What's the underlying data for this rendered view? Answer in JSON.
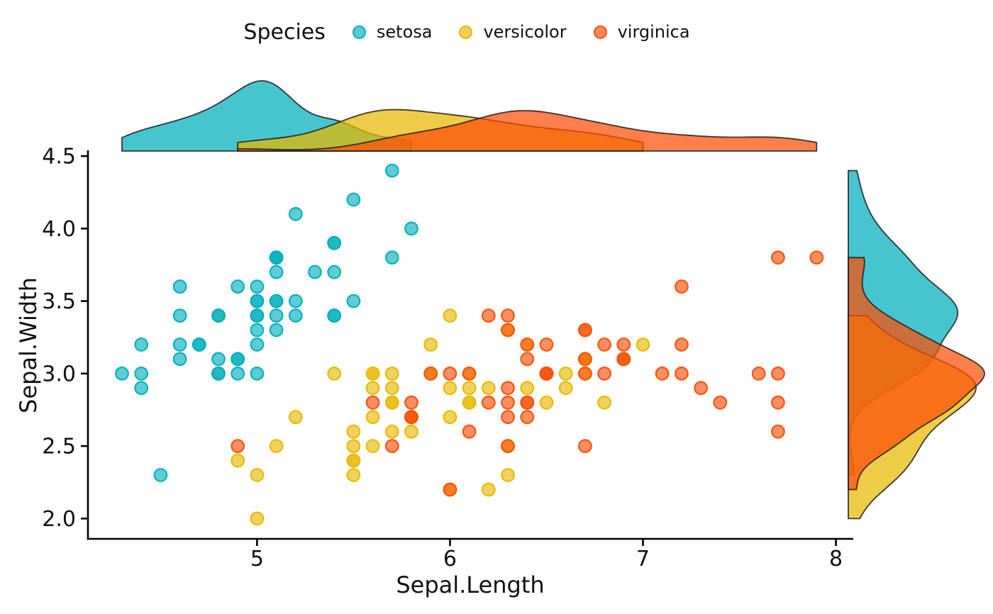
{
  "legend": {
    "title": "Species",
    "items": [
      {
        "label": "setosa",
        "color": "#00AFBB"
      },
      {
        "label": "versicolor",
        "color": "#E7B800"
      },
      {
        "label": "virginica",
        "color": "#FC4E07"
      }
    ]
  },
  "chart_data": {
    "type": "scatter",
    "title": "",
    "xlabel": "Sepal.Length",
    "ylabel": "Sepal.Width",
    "legend_title": "Species",
    "legend_position": "top",
    "xlim": [
      4.12,
      8.09
    ],
    "ylim": [
      1.86,
      4.53
    ],
    "grid": false,
    "marginals": {
      "top": "density of Sepal.Length by Species",
      "right": "density of Sepal.Width by Species"
    },
    "x_ticks": [
      {
        "value": 5,
        "label": "5"
      },
      {
        "value": 6,
        "label": "6"
      },
      {
        "value": 7,
        "label": "7"
      },
      {
        "value": 8,
        "label": "8"
      }
    ],
    "y_ticks": [
      {
        "value": 4.5,
        "label": "4.5"
      },
      {
        "value": 4.0,
        "label": "4.0"
      },
      {
        "value": 3.5,
        "label": "3.5"
      },
      {
        "value": 3.0,
        "label": "3.0"
      },
      {
        "value": 2.5,
        "label": "2.5"
      },
      {
        "value": 2.0,
        "label": "2.0"
      }
    ],
    "series": [
      {
        "name": "setosa",
        "color": "#00AFBB",
        "points": [
          [
            5.1,
            3.5
          ],
          [
            4.9,
            3.0
          ],
          [
            4.7,
            3.2
          ],
          [
            4.6,
            3.1
          ],
          [
            5.0,
            3.6
          ],
          [
            5.4,
            3.9
          ],
          [
            4.6,
            3.4
          ],
          [
            5.0,
            3.4
          ],
          [
            4.4,
            2.9
          ],
          [
            4.9,
            3.1
          ],
          [
            5.4,
            3.7
          ],
          [
            4.8,
            3.4
          ],
          [
            4.8,
            3.0
          ],
          [
            4.3,
            3.0
          ],
          [
            5.8,
            4.0
          ],
          [
            5.7,
            4.4
          ],
          [
            5.4,
            3.9
          ],
          [
            5.1,
            3.5
          ],
          [
            5.7,
            3.8
          ],
          [
            5.1,
            3.8
          ],
          [
            5.4,
            3.4
          ],
          [
            5.1,
            3.7
          ],
          [
            4.6,
            3.6
          ],
          [
            5.1,
            3.3
          ],
          [
            4.8,
            3.4
          ],
          [
            5.0,
            3.0
          ],
          [
            5.0,
            3.4
          ],
          [
            5.2,
            3.5
          ],
          [
            5.2,
            3.4
          ],
          [
            4.7,
            3.2
          ],
          [
            4.8,
            3.1
          ],
          [
            5.4,
            3.4
          ],
          [
            5.2,
            4.1
          ],
          [
            5.5,
            4.2
          ],
          [
            4.9,
            3.1
          ],
          [
            5.0,
            3.2
          ],
          [
            5.5,
            3.5
          ],
          [
            4.9,
            3.6
          ],
          [
            4.4,
            3.0
          ],
          [
            5.1,
            3.4
          ],
          [
            5.0,
            3.5
          ],
          [
            4.5,
            2.3
          ],
          [
            4.4,
            3.2
          ],
          [
            5.0,
            3.5
          ],
          [
            5.1,
            3.8
          ],
          [
            4.8,
            3.0
          ],
          [
            5.1,
            3.8
          ],
          [
            4.6,
            3.2
          ],
          [
            5.3,
            3.7
          ],
          [
            5.0,
            3.3
          ]
        ]
      },
      {
        "name": "versicolor",
        "color": "#E7B800",
        "points": [
          [
            7.0,
            3.2
          ],
          [
            6.4,
            3.2
          ],
          [
            6.9,
            3.1
          ],
          [
            5.5,
            2.3
          ],
          [
            6.5,
            2.8
          ],
          [
            5.7,
            2.8
          ],
          [
            6.3,
            3.3
          ],
          [
            4.9,
            2.4
          ],
          [
            6.6,
            2.9
          ],
          [
            5.2,
            2.7
          ],
          [
            5.0,
            2.0
          ],
          [
            5.9,
            3.0
          ],
          [
            6.0,
            2.2
          ],
          [
            6.1,
            2.9
          ],
          [
            5.6,
            2.9
          ],
          [
            6.7,
            3.1
          ],
          [
            5.6,
            3.0
          ],
          [
            5.8,
            2.7
          ],
          [
            6.2,
            2.2
          ],
          [
            5.6,
            2.5
          ],
          [
            5.9,
            3.2
          ],
          [
            6.1,
            2.8
          ],
          [
            6.3,
            2.5
          ],
          [
            6.1,
            2.8
          ],
          [
            6.4,
            2.9
          ],
          [
            6.6,
            3.0
          ],
          [
            6.8,
            2.8
          ],
          [
            6.7,
            3.0
          ],
          [
            6.0,
            2.9
          ],
          [
            5.7,
            2.6
          ],
          [
            5.5,
            2.4
          ],
          [
            5.5,
            2.4
          ],
          [
            5.8,
            2.7
          ],
          [
            6.0,
            2.7
          ],
          [
            5.4,
            3.0
          ],
          [
            6.0,
            3.4
          ],
          [
            6.7,
            3.1
          ],
          [
            6.3,
            2.3
          ],
          [
            5.6,
            3.0
          ],
          [
            5.5,
            2.5
          ],
          [
            5.5,
            2.6
          ],
          [
            6.1,
            3.0
          ],
          [
            5.8,
            2.6
          ],
          [
            5.0,
            2.3
          ],
          [
            5.6,
            2.7
          ],
          [
            5.7,
            3.0
          ],
          [
            5.7,
            2.9
          ],
          [
            6.2,
            2.9
          ],
          [
            5.1,
            2.5
          ],
          [
            5.7,
            2.8
          ]
        ]
      },
      {
        "name": "virginica",
        "color": "#FC4E07",
        "points": [
          [
            6.3,
            3.3
          ],
          [
            5.8,
            2.7
          ],
          [
            7.1,
            3.0
          ],
          [
            6.3,
            2.9
          ],
          [
            6.5,
            3.0
          ],
          [
            7.6,
            3.0
          ],
          [
            4.9,
            2.5
          ],
          [
            7.3,
            2.9
          ],
          [
            6.7,
            2.5
          ],
          [
            7.2,
            3.6
          ],
          [
            6.5,
            3.2
          ],
          [
            6.4,
            2.7
          ],
          [
            6.8,
            3.0
          ],
          [
            5.7,
            2.5
          ],
          [
            5.8,
            2.8
          ],
          [
            6.4,
            3.2
          ],
          [
            6.5,
            3.0
          ],
          [
            7.7,
            3.8
          ],
          [
            7.7,
            2.6
          ],
          [
            6.0,
            2.2
          ],
          [
            6.9,
            3.2
          ],
          [
            5.6,
            2.8
          ],
          [
            7.7,
            2.8
          ],
          [
            6.3,
            2.7
          ],
          [
            6.7,
            3.3
          ],
          [
            7.2,
            3.2
          ],
          [
            6.2,
            2.8
          ],
          [
            6.1,
            3.0
          ],
          [
            6.4,
            2.8
          ],
          [
            7.2,
            3.0
          ],
          [
            7.4,
            2.8
          ],
          [
            7.9,
            3.8
          ],
          [
            6.4,
            2.8
          ],
          [
            6.3,
            2.8
          ],
          [
            6.1,
            2.6
          ],
          [
            7.7,
            3.0
          ],
          [
            6.3,
            3.4
          ],
          [
            6.4,
            3.1
          ],
          [
            6.0,
            3.0
          ],
          [
            6.9,
            3.1
          ],
          [
            6.7,
            3.1
          ],
          [
            6.9,
            3.1
          ],
          [
            5.8,
            2.7
          ],
          [
            6.8,
            3.2
          ],
          [
            6.7,
            3.3
          ],
          [
            6.7,
            3.0
          ],
          [
            6.3,
            2.5
          ],
          [
            6.5,
            3.0
          ],
          [
            6.2,
            3.4
          ],
          [
            5.9,
            3.0
          ]
        ]
      }
    ]
  }
}
